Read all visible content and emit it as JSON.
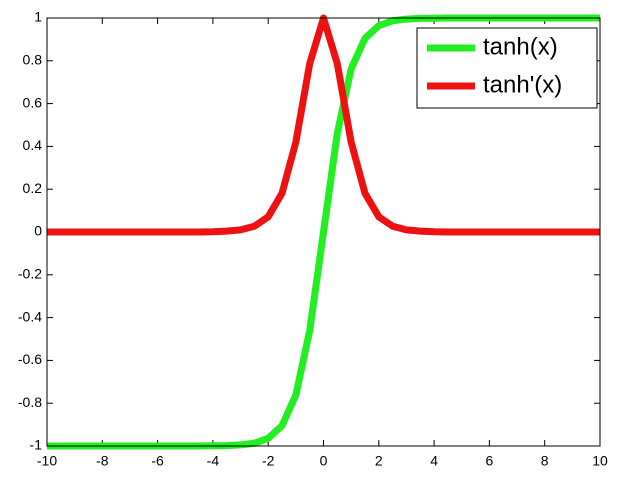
{
  "chart_data": {
    "type": "line",
    "x": [
      -10,
      -9.5,
      -9,
      -8.5,
      -8,
      -7.5,
      -7,
      -6.5,
      -6,
      -5.5,
      -5,
      -4.5,
      -4,
      -3.5,
      -3,
      -2.5,
      -2,
      -1.5,
      -1,
      -0.5,
      0,
      0.5,
      1,
      1.5,
      2,
      2.5,
      3,
      3.5,
      4,
      4.5,
      5,
      5.5,
      6,
      6.5,
      7,
      7.5,
      8,
      8.5,
      9,
      9.5,
      10
    ],
    "series": [
      {
        "name": "tanh(x)",
        "color": "#22ee22",
        "values": [
          -1,
          -1,
          -1,
          -1,
          -1,
          -1,
          -1,
          -1,
          -1,
          -1,
          -1,
          -1,
          -0.999,
          -0.998,
          -0.995,
          -0.987,
          -0.964,
          -0.905,
          -0.762,
          -0.462,
          0,
          0.462,
          0.762,
          0.905,
          0.964,
          0.987,
          0.995,
          0.998,
          0.999,
          1,
          1,
          1,
          1,
          1,
          1,
          1,
          1,
          1,
          1,
          1,
          1
        ]
      },
      {
        "name": "tanh'(x)",
        "color": "#ee1111",
        "values": [
          0,
          0,
          0,
          0,
          0,
          0,
          0,
          0,
          0,
          0,
          0,
          0,
          0.001,
          0.004,
          0.01,
          0.027,
          0.071,
          0.181,
          0.42,
          0.786,
          1,
          0.786,
          0.42,
          0.181,
          0.071,
          0.027,
          0.01,
          0.004,
          0.001,
          0,
          0,
          0,
          0,
          0,
          0,
          0,
          0,
          0,
          0,
          0,
          0
        ]
      }
    ],
    "xlim": [
      -10,
      10
    ],
    "xticks": [
      -10,
      -8,
      -6,
      -4,
      -2,
      0,
      2,
      4,
      6,
      8,
      10
    ],
    "ylim": [
      -1,
      1
    ],
    "yticks": [
      -1,
      -0.8,
      -0.6,
      -0.4,
      -0.2,
      0,
      0.2,
      0.4,
      0.6,
      0.8,
      1
    ],
    "legend": "upper right"
  }
}
